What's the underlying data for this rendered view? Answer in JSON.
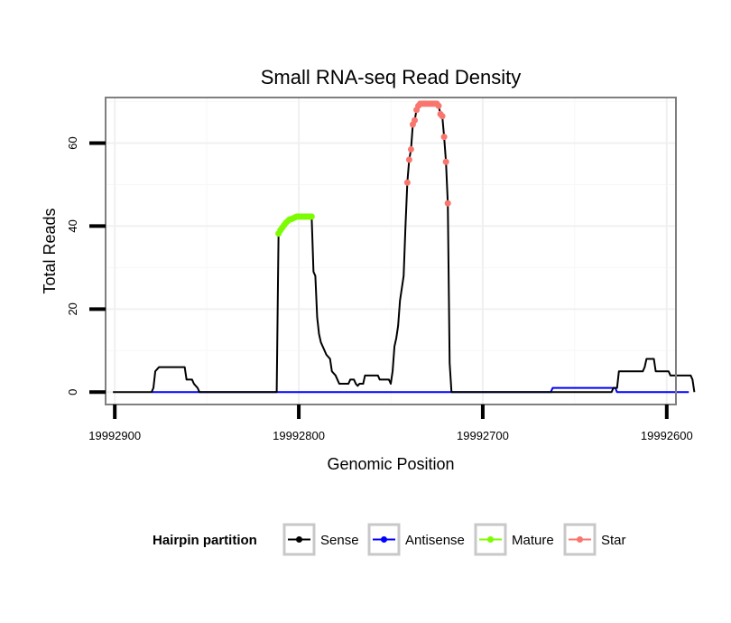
{
  "chart_data": {
    "type": "line",
    "title": "Small RNA-seq Read Density",
    "xlabel": "Genomic Position",
    "ylabel": "Total Reads",
    "xlim": [
      19992905,
      19992595
    ],
    "ylim": [
      -3,
      71
    ],
    "x_reversed": true,
    "x_ticks": [
      19992900,
      19992800,
      19992700,
      19992600
    ],
    "x_tick_labels": [
      "19992900",
      "19992800",
      "19992700",
      "19992600"
    ],
    "y_ticks": [
      0,
      20,
      40,
      60
    ],
    "y_tick_labels": [
      "0",
      "20",
      "40",
      "60"
    ],
    "grid": true,
    "legend": {
      "title": "Hairpin partition",
      "position": "bottom",
      "entries": [
        {
          "label": "Sense",
          "color": "#000000"
        },
        {
          "label": "Antisense",
          "color": "#0000ff"
        },
        {
          "label": "Mature",
          "color": "#7cfc00"
        },
        {
          "label": "Star",
          "color": "#f8766d"
        }
      ]
    },
    "series": [
      {
        "name": "Sense",
        "color": "#000000",
        "style": "line",
        "points": [
          [
            19992901,
            0
          ],
          [
            19992880,
            0
          ],
          [
            19992879,
            1
          ],
          [
            19992878,
            5
          ],
          [
            19992877,
            5.5
          ],
          [
            19992876,
            6
          ],
          [
            19992862,
            6
          ],
          [
            19992861,
            3
          ],
          [
            19992858,
            3
          ],
          [
            19992857,
            2
          ],
          [
            19992855,
            1
          ],
          [
            19992854,
            0
          ],
          [
            19992812,
            0
          ],
          [
            19992811,
            38
          ],
          [
            19992810,
            38.8
          ],
          [
            19992809,
            39.5
          ],
          [
            19992807,
            40.3
          ],
          [
            19992805,
            41
          ],
          [
            19992803,
            41.8
          ],
          [
            19992801,
            42.3
          ],
          [
            19992797,
            42.3
          ],
          [
            19992793,
            42.3
          ],
          [
            19992792,
            29
          ],
          [
            19992791,
            28
          ],
          [
            19992790,
            18
          ],
          [
            19992789,
            14
          ],
          [
            19992788,
            12
          ],
          [
            19992786,
            10
          ],
          [
            19992785,
            9
          ],
          [
            19992783,
            8
          ],
          [
            19992782,
            5
          ],
          [
            19992781,
            4.5
          ],
          [
            19992780,
            4
          ],
          [
            19992779,
            3
          ],
          [
            19992778,
            2
          ],
          [
            19992773,
            2
          ],
          [
            19992772,
            3
          ],
          [
            19992770,
            3
          ],
          [
            19992769,
            2
          ],
          [
            19992768,
            1.5
          ],
          [
            19992767,
            2
          ],
          [
            19992765,
            2
          ],
          [
            19992764,
            4
          ],
          [
            19992757,
            4
          ],
          [
            19992756,
            3
          ],
          [
            19992751,
            3
          ],
          [
            19992750,
            2
          ],
          [
            19992749,
            5
          ],
          [
            19992748,
            11
          ],
          [
            19992747,
            13
          ],
          [
            19992746,
            16
          ],
          [
            19992745,
            22
          ],
          [
            19992744,
            25
          ],
          [
            19992743,
            28
          ],
          [
            19992742,
            40
          ],
          [
            19992741,
            50.5
          ],
          [
            19992740,
            56
          ],
          [
            19992739,
            58.5
          ],
          [
            19992738,
            64.5
          ],
          [
            19992737,
            65.5
          ],
          [
            19992736,
            68
          ],
          [
            19992735,
            69
          ],
          [
            19992734,
            69.5
          ],
          [
            19992733,
            69.5
          ],
          [
            19992725,
            69.5
          ],
          [
            19992724,
            69
          ],
          [
            19992723,
            67
          ],
          [
            19992722,
            66.5
          ],
          [
            19992721,
            61.5
          ],
          [
            19992720,
            55.5
          ],
          [
            19992719,
            45.5
          ],
          [
            19992718,
            7
          ],
          [
            19992717,
            0
          ],
          [
            19992630,
            0
          ],
          [
            19992629,
            1
          ],
          [
            19992627,
            1
          ],
          [
            19992626,
            5
          ],
          [
            19992613,
            5
          ],
          [
            19992612,
            6
          ],
          [
            19992611,
            8
          ],
          [
            19992607,
            8
          ],
          [
            19992606,
            5
          ],
          [
            19992599,
            5
          ],
          [
            19992598,
            4
          ],
          [
            19992587,
            4
          ],
          [
            19992586,
            3
          ],
          [
            19992585,
            0
          ]
        ]
      },
      {
        "name": "Antisense",
        "color": "#0000ff",
        "style": "line",
        "points": [
          [
            19992880,
            0
          ],
          [
            19992663,
            0
          ],
          [
            19992662,
            1
          ],
          [
            19992628,
            1
          ],
          [
            19992627,
            0
          ],
          [
            19992588,
            0
          ]
        ]
      },
      {
        "name": "Mature",
        "color": "#7cfc00",
        "style": "points",
        "points": [
          [
            19992811,
            38.2
          ],
          [
            19992810,
            39
          ],
          [
            19992809,
            39.6
          ],
          [
            19992808,
            40.2
          ],
          [
            19992807,
            40.8
          ],
          [
            19992806,
            41.2
          ],
          [
            19992805,
            41.6
          ],
          [
            19992804,
            41.7
          ],
          [
            19992803,
            41.9
          ],
          [
            19992802,
            42.1
          ],
          [
            19992801,
            42.3
          ],
          [
            19992800,
            42.3
          ],
          [
            19992799,
            42.3
          ],
          [
            19992798,
            42.3
          ],
          [
            19992797,
            42.3
          ],
          [
            19992796,
            42.3
          ],
          [
            19992795,
            42.3
          ],
          [
            19992794,
            42.3
          ],
          [
            19992793,
            42.3
          ]
        ]
      },
      {
        "name": "Star",
        "color": "#f8766d",
        "style": "points",
        "points": [
          [
            19992741,
            50.5
          ],
          [
            19992740,
            56
          ],
          [
            19992739,
            58.5
          ],
          [
            19992738,
            64.5
          ],
          [
            19992737,
            65.5
          ],
          [
            19992736,
            68
          ],
          [
            19992735,
            69
          ],
          [
            19992734,
            69.5
          ],
          [
            19992733,
            69.5
          ],
          [
            19992732,
            69.5
          ],
          [
            19992731,
            69.5
          ],
          [
            19992730,
            69.5
          ],
          [
            19992729,
            69.5
          ],
          [
            19992728,
            69.5
          ],
          [
            19992727,
            69.5
          ],
          [
            19992726,
            69.5
          ],
          [
            19992725,
            69.5
          ],
          [
            19992724,
            69
          ],
          [
            19992723,
            67
          ],
          [
            19992722,
            66.5
          ],
          [
            19992721,
            61.5
          ],
          [
            19992720,
            55.5
          ],
          [
            19992719,
            45.5
          ]
        ]
      }
    ]
  }
}
